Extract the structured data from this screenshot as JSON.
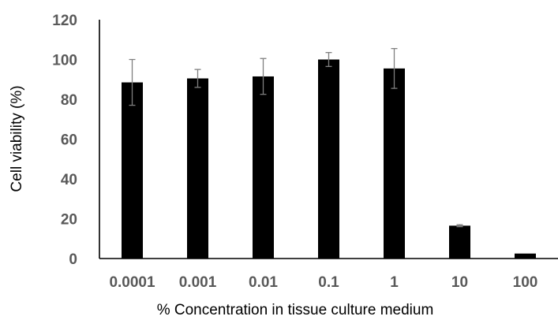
{
  "chart_data": {
    "type": "bar",
    "title": "",
    "xlabel": "% Concentration in tissue culture medium",
    "ylabel": "Cell viability (%)",
    "categories": [
      "0.0001",
      "0.001",
      "0.01",
      "0.1",
      "1",
      "10",
      "100"
    ],
    "values": [
      88.5,
      90.5,
      91.5,
      100,
      95.5,
      16.5,
      2.5
    ],
    "error": [
      11.5,
      4.5,
      9.0,
      3.5,
      10.0,
      0.5,
      0.0
    ],
    "ylim": [
      0,
      120
    ],
    "yticks": [
      0,
      20,
      40,
      60,
      80,
      100,
      120
    ],
    "grid": false,
    "legend": "none",
    "bar_color": "#000000",
    "error_bar_color": "#7f7f7f",
    "tick_label_color": "#595959",
    "axis_line_color": "#000000"
  }
}
